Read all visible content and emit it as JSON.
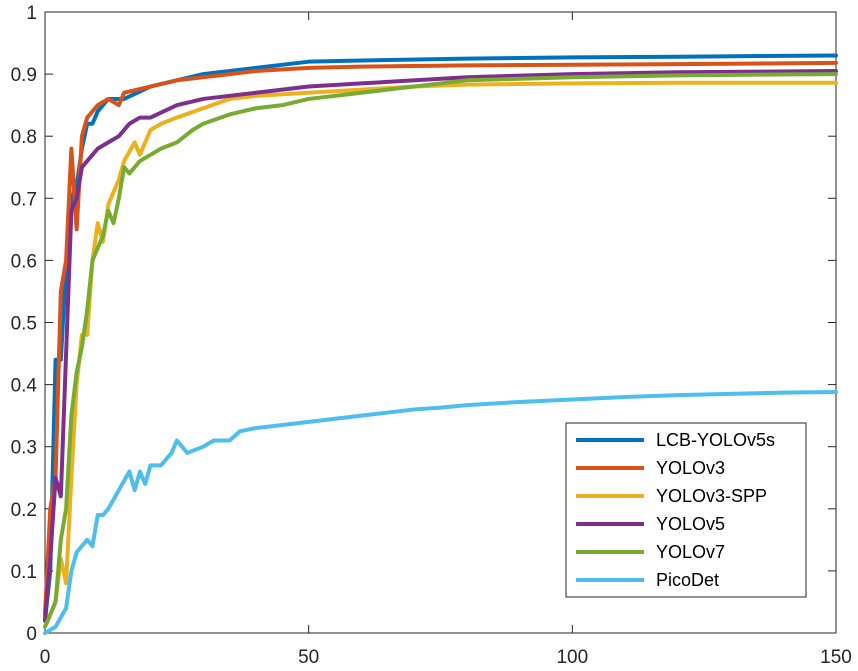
{
  "chart_data": {
    "type": "line",
    "title": "",
    "xlabel": "",
    "ylabel": "",
    "xlim": [
      0,
      150
    ],
    "ylim": [
      0,
      1
    ],
    "x_ticks": [
      "0",
      "50",
      "100",
      "150"
    ],
    "y_ticks": [
      "0",
      "0.1",
      "0.2",
      "0.3",
      "0.4",
      "0.5",
      "0.6",
      "0.7",
      "0.8",
      "0.9",
      "1"
    ],
    "grid": false,
    "legend_position": "lower-right",
    "series": [
      {
        "name": "LCB-YOLOv5s",
        "color": "#0072BD",
        "points": [
          [
            0,
            0.02
          ],
          [
            1,
            0.1
          ],
          [
            2,
            0.44
          ],
          [
            3,
            0.44
          ],
          [
            4,
            0.59
          ],
          [
            5,
            0.7
          ],
          [
            6,
            0.72
          ],
          [
            7,
            0.78
          ],
          [
            8,
            0.82
          ],
          [
            9,
            0.82
          ],
          [
            10,
            0.84
          ],
          [
            12,
            0.86
          ],
          [
            15,
            0.86
          ],
          [
            20,
            0.88
          ],
          [
            25,
            0.89
          ],
          [
            30,
            0.9
          ],
          [
            40,
            0.91
          ],
          [
            50,
            0.92
          ],
          [
            60,
            0.922
          ],
          [
            80,
            0.925
          ],
          [
            100,
            0.927
          ],
          [
            120,
            0.928
          ],
          [
            150,
            0.93
          ]
        ]
      },
      {
        "name": "YOLOv3",
        "color": "#D95319",
        "points": [
          [
            0,
            0.03
          ],
          [
            1,
            0.2
          ],
          [
            2,
            0.25
          ],
          [
            3,
            0.55
          ],
          [
            4,
            0.6
          ],
          [
            5,
            0.78
          ],
          [
            6,
            0.65
          ],
          [
            7,
            0.8
          ],
          [
            8,
            0.83
          ],
          [
            9,
            0.84
          ],
          [
            10,
            0.85
          ],
          [
            12,
            0.86
          ],
          [
            14,
            0.85
          ],
          [
            15,
            0.87
          ],
          [
            20,
            0.88
          ],
          [
            25,
            0.89
          ],
          [
            30,
            0.895
          ],
          [
            40,
            0.905
          ],
          [
            50,
            0.91
          ],
          [
            60,
            0.912
          ],
          [
            80,
            0.914
          ],
          [
            100,
            0.915
          ],
          [
            120,
            0.916
          ],
          [
            150,
            0.918
          ]
        ]
      },
      {
        "name": "YOLOv3-SPP",
        "color": "#EDB120",
        "points": [
          [
            0,
            0.01
          ],
          [
            2,
            0.05
          ],
          [
            3,
            0.12
          ],
          [
            4,
            0.08
          ],
          [
            5,
            0.25
          ],
          [
            6,
            0.4
          ],
          [
            7,
            0.48
          ],
          [
            8,
            0.48
          ],
          [
            9,
            0.6
          ],
          [
            10,
            0.66
          ],
          [
            11,
            0.63
          ],
          [
            12,
            0.69
          ],
          [
            13,
            0.71
          ],
          [
            14,
            0.73
          ],
          [
            15,
            0.76
          ],
          [
            17,
            0.79
          ],
          [
            18,
            0.77
          ],
          [
            20,
            0.81
          ],
          [
            22,
            0.82
          ],
          [
            25,
            0.83
          ],
          [
            30,
            0.845
          ],
          [
            35,
            0.86
          ],
          [
            40,
            0.865
          ],
          [
            50,
            0.87
          ],
          [
            60,
            0.875
          ],
          [
            70,
            0.88
          ],
          [
            80,
            0.883
          ],
          [
            100,
            0.885
          ],
          [
            120,
            0.886
          ],
          [
            150,
            0.886
          ]
        ]
      },
      {
        "name": "YOLOv5",
        "color": "#7E2F8E",
        "points": [
          [
            0,
            0.02
          ],
          [
            1,
            0.12
          ],
          [
            2,
            0.25
          ],
          [
            3,
            0.22
          ],
          [
            4,
            0.45
          ],
          [
            5,
            0.68
          ],
          [
            6,
            0.7
          ],
          [
            7,
            0.75
          ],
          [
            8,
            0.76
          ],
          [
            9,
            0.77
          ],
          [
            10,
            0.78
          ],
          [
            12,
            0.79
          ],
          [
            14,
            0.8
          ],
          [
            16,
            0.82
          ],
          [
            18,
            0.83
          ],
          [
            20,
            0.83
          ],
          [
            25,
            0.85
          ],
          [
            30,
            0.86
          ],
          [
            40,
            0.87
          ],
          [
            50,
            0.88
          ],
          [
            60,
            0.885
          ],
          [
            80,
            0.895
          ],
          [
            100,
            0.9
          ],
          [
            120,
            0.903
          ],
          [
            150,
            0.905
          ]
        ]
      },
      {
        "name": "YOLOv7",
        "color": "#77AC30",
        "points": [
          [
            0,
            0.01
          ],
          [
            2,
            0.05
          ],
          [
            3,
            0.15
          ],
          [
            4,
            0.2
          ],
          [
            5,
            0.35
          ],
          [
            6,
            0.42
          ],
          [
            7,
            0.46
          ],
          [
            8,
            0.52
          ],
          [
            9,
            0.6
          ],
          [
            10,
            0.62
          ],
          [
            11,
            0.64
          ],
          [
            12,
            0.68
          ],
          [
            13,
            0.66
          ],
          [
            14,
            0.7
          ],
          [
            15,
            0.75
          ],
          [
            16,
            0.74
          ],
          [
            18,
            0.76
          ],
          [
            20,
            0.77
          ],
          [
            22,
            0.78
          ],
          [
            25,
            0.79
          ],
          [
            28,
            0.81
          ],
          [
            30,
            0.82
          ],
          [
            35,
            0.835
          ],
          [
            40,
            0.845
          ],
          [
            45,
            0.85
          ],
          [
            50,
            0.86
          ],
          [
            60,
            0.87
          ],
          [
            70,
            0.88
          ],
          [
            80,
            0.89
          ],
          [
            100,
            0.895
          ],
          [
            120,
            0.898
          ],
          [
            150,
            0.9
          ]
        ]
      },
      {
        "name": "PicoDet",
        "color": "#4DBEEE",
        "points": [
          [
            0,
            0.0
          ],
          [
            2,
            0.01
          ],
          [
            4,
            0.04
          ],
          [
            5,
            0.1
          ],
          [
            6,
            0.13
          ],
          [
            7,
            0.14
          ],
          [
            8,
            0.15
          ],
          [
            9,
            0.14
          ],
          [
            10,
            0.19
          ],
          [
            11,
            0.19
          ],
          [
            12,
            0.2
          ],
          [
            14,
            0.23
          ],
          [
            16,
            0.26
          ],
          [
            17,
            0.23
          ],
          [
            18,
            0.26
          ],
          [
            19,
            0.24
          ],
          [
            20,
            0.27
          ],
          [
            22,
            0.27
          ],
          [
            24,
            0.29
          ],
          [
            25,
            0.31
          ],
          [
            27,
            0.29
          ],
          [
            30,
            0.3
          ],
          [
            32,
            0.31
          ],
          [
            35,
            0.31
          ],
          [
            37,
            0.325
          ],
          [
            40,
            0.33
          ],
          [
            45,
            0.335
          ],
          [
            50,
            0.34
          ],
          [
            55,
            0.345
          ],
          [
            60,
            0.35
          ],
          [
            65,
            0.355
          ],
          [
            70,
            0.36
          ],
          [
            75,
            0.363
          ],
          [
            80,
            0.367
          ],
          [
            90,
            0.372
          ],
          [
            100,
            0.376
          ],
          [
            110,
            0.38
          ],
          [
            120,
            0.383
          ],
          [
            130,
            0.385
          ],
          [
            140,
            0.387
          ],
          [
            150,
            0.388
          ]
        ]
      }
    ]
  }
}
